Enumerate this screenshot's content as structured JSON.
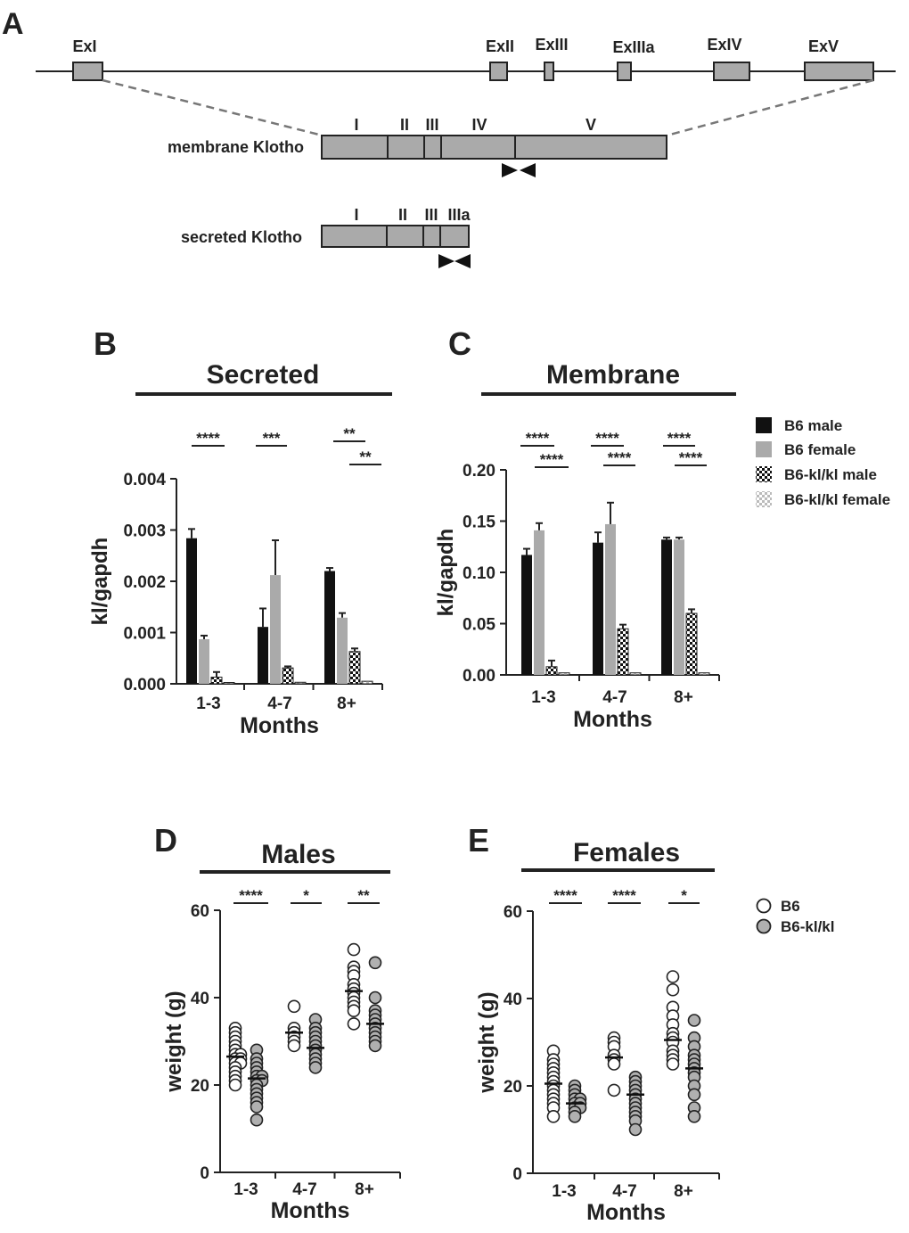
{
  "panel_labels": {
    "a": "A",
    "b": "B",
    "c": "C",
    "d": "D",
    "e": "E"
  },
  "gene": {
    "exons": [
      "ExI",
      "ExII",
      "ExIII",
      "ExIIIa",
      "ExIV",
      "ExV"
    ],
    "membrane_label": "membrane Klotho",
    "membrane_domains": [
      "I",
      "II",
      "III",
      "IV",
      "V"
    ],
    "secreted_label": "secreted Klotho",
    "secreted_domains": [
      "I",
      "II",
      "III",
      "IIIa"
    ]
  },
  "colors": {
    "black": "#111111",
    "gray": "#aaaaaa",
    "circle_fill": "#b0b0b0"
  },
  "legend_bars": [
    "B6 male",
    "B6 female",
    "B6-kl/kl male",
    "B6-kl/kl female"
  ],
  "legend_points": [
    "B6",
    "B6-kl/kl"
  ],
  "chart_data": [
    {
      "id": "B",
      "type": "bar",
      "title": "Secreted",
      "categories": [
        "1-3",
        "4-7",
        "8+"
      ],
      "xlabel": "Months",
      "ylabel": "kl/gapdh",
      "ylim": [
        0,
        0.004
      ],
      "yticks": [
        "0.000",
        "0.001",
        "0.002",
        "0.003",
        "0.004"
      ],
      "series": [
        {
          "name": "B6 male",
          "values": [
            0.00284,
            0.00111,
            0.0022
          ],
          "errors": [
            0.00018,
            0.00036,
            6e-05
          ]
        },
        {
          "name": "B6 female",
          "values": [
            0.00087,
            0.00212,
            0.00129
          ],
          "errors": [
            7e-05,
            0.00068,
            9e-05
          ]
        },
        {
          "name": "B6-kl/kl male",
          "values": [
            0.00013,
            0.00031,
            0.00063
          ],
          "errors": [
            0.0001,
            3e-05,
            6e-05
          ]
        },
        {
          "name": "B6-kl/kl female",
          "values": [
            2e-05,
            3e-05,
            5e-05
          ],
          "errors": [
            0.0,
            0.0,
            0.0
          ]
        }
      ],
      "significance": [
        "****",
        "***",
        "**",
        "**"
      ]
    },
    {
      "id": "C",
      "type": "bar",
      "title": "Membrane",
      "categories": [
        "1-3",
        "4-7",
        "8+"
      ],
      "xlabel": "Months",
      "ylabel": "kl/gapdh",
      "ylim": [
        0,
        0.2
      ],
      "yticks": [
        "0.00",
        "0.05",
        "0.10",
        "0.15",
        "0.20"
      ],
      "series": [
        {
          "name": "B6 male",
          "values": [
            0.117,
            0.129,
            0.132
          ],
          "errors": [
            0.006,
            0.01,
            0.002
          ]
        },
        {
          "name": "B6 female",
          "values": [
            0.141,
            0.147,
            0.132
          ],
          "errors": [
            0.007,
            0.021,
            0.002
          ]
        },
        {
          "name": "B6-kl/kl male",
          "values": [
            0.008,
            0.045,
            0.06
          ],
          "errors": [
            0.006,
            0.004,
            0.004
          ]
        },
        {
          "name": "B6-kl/kl female",
          "values": [
            0.002,
            0.002,
            0.002
          ],
          "errors": [
            0.0,
            0.0,
            0.0
          ]
        }
      ],
      "significance": [
        "****",
        "****",
        "****",
        "****",
        "****",
        "****"
      ]
    },
    {
      "id": "D",
      "type": "scatter",
      "title": "Males",
      "categories": [
        "1-3",
        "4-7",
        "8+"
      ],
      "xlabel": "Months",
      "ylabel": "weight (g)",
      "ylim": [
        0,
        60
      ],
      "yticks": [
        "0",
        "20",
        "40",
        "60"
      ],
      "series": [
        {
          "name": "B6",
          "means": [
            26.5,
            32,
            41.5
          ],
          "points": [
            [
              33,
              32,
              31,
              30,
              29,
              28,
              27,
              27,
              26,
              26,
              25,
              25,
              24,
              23,
              22,
              21,
              20
            ],
            [
              38,
              33,
              32,
              31,
              30,
              29
            ],
            [
              51,
              47,
              46,
              45,
              43,
              42,
              41,
              40,
              39,
              38,
              37,
              34
            ]
          ]
        },
        {
          "name": "B6-kl/kl",
          "means": [
            21.5,
            28.5,
            34
          ],
          "points": [
            [
              28,
              26,
              25,
              24,
              23,
              22,
              22,
              21,
              21,
              20,
              19,
              18,
              17,
              16,
              15,
              12
            ],
            [
              35,
              33,
              32,
              31,
              30,
              29,
              28,
              27,
              26,
              25,
              24
            ],
            [
              48,
              40,
              37,
              36,
              35,
              34,
              33,
              32,
              31,
              30,
              29
            ]
          ]
        }
      ],
      "significance": [
        "****",
        "*",
        "**"
      ]
    },
    {
      "id": "E",
      "type": "scatter",
      "title": "Females",
      "categories": [
        "1-3",
        "4-7",
        "8+"
      ],
      "xlabel": "Months",
      "ylabel": "weight (g)",
      "ylim": [
        0,
        60
      ],
      "yticks": [
        "0",
        "20",
        "40",
        "60"
      ],
      "series": [
        {
          "name": "B6",
          "means": [
            20.5,
            26.5,
            30.5
          ],
          "points": [
            [
              28,
              26,
              25,
              24,
              23,
              22,
              21,
              20,
              19,
              18,
              17,
              16,
              15,
              13
            ],
            [
              31,
              30,
              29,
              27,
              26,
              25,
              19
            ],
            [
              45,
              42,
              38,
              36,
              34,
              32,
              31,
              30,
              28,
              27,
              26,
              25
            ]
          ]
        },
        {
          "name": "B6-kl/kl",
          "means": [
            16,
            18,
            24
          ],
          "points": [
            [
              20,
              19,
              18,
              17,
              17,
              16,
              16,
              15,
              15,
              14,
              13
            ],
            [
              22,
              21,
              20,
              19,
              18,
              17,
              16,
              15,
              14,
              13,
              12,
              10
            ],
            [
              35,
              31,
              29,
              27,
              26,
              25,
              24,
              23,
              22,
              20,
              18,
              15,
              13
            ]
          ]
        }
      ],
      "significance": [
        "****",
        "****",
        "*"
      ]
    }
  ]
}
